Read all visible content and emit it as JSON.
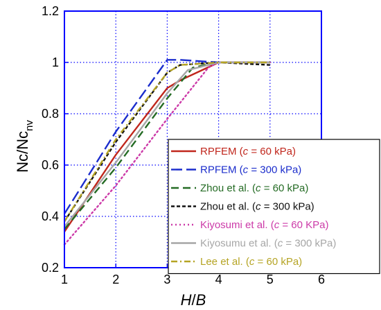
{
  "chart_data": {
    "type": "line",
    "xlabel": {
      "italic": "H",
      "normal": "/",
      "italic2": "B"
    },
    "ylabel": {
      "main": "Nc/Nc",
      "sub": "nv"
    },
    "xlim": [
      1,
      6
    ],
    "ylim": [
      0.2,
      1.2
    ],
    "xticks": [
      1,
      2,
      3,
      4,
      5,
      6
    ],
    "yticks": [
      0.2,
      0.4,
      0.6,
      0.8,
      1.0,
      1.2
    ],
    "xtick_labels": [
      "1",
      "2",
      "3",
      "4",
      "5",
      "6"
    ],
    "ytick_labels": [
      "0.2",
      "0.4",
      "0.6",
      "0.8",
      "1",
      "1.2"
    ],
    "grid": true,
    "legend_position": "bottom-right",
    "series": [
      {
        "name": "RPFEM (c = 60 kPa)",
        "legend": {
          "pre": "RPFEM (",
          "it": "c",
          "post": " = 60 kPa)"
        },
        "color": "#c0261c",
        "dash": "solid",
        "x": [
          1,
          2,
          3,
          3.25,
          4,
          5
        ],
        "y": [
          0.34,
          0.64,
          0.9,
          0.93,
          1.0,
          1.0
        ]
      },
      {
        "name": "RPFEM (c = 300 kPa)",
        "legend": {
          "pre": "RPFEM (",
          "it": "c",
          "post": " = 300 kPa)"
        },
        "color": "#1b2dcc",
        "dash": "longdash",
        "x": [
          1,
          2,
          3,
          3.25,
          4,
          5
        ],
        "y": [
          0.41,
          0.73,
          1.01,
          1.01,
          1.0,
          1.0
        ]
      },
      {
        "name": "Zhou et al. (c = 60 kPa)",
        "legend": {
          "pre": "Zhou et al. (",
          "it": "c",
          "post": " = 60 kPa)"
        },
        "color": "#246b24",
        "dash": "dash",
        "x": [
          1,
          2,
          3,
          3.5,
          4,
          5
        ],
        "y": [
          0.35,
          0.59,
          0.86,
          0.98,
          1.0,
          1.0
        ]
      },
      {
        "name": "Zhou et al. (c = 300 kPa)",
        "legend": {
          "pre": "Zhou et al. (",
          "it": "c",
          "post": " = 300 kPa)"
        },
        "color": "#111111",
        "dash": "shortdash",
        "x": [
          1,
          2,
          3,
          3.25,
          4,
          5
        ],
        "y": [
          0.38,
          0.69,
          0.96,
          0.99,
          1.0,
          0.99
        ]
      },
      {
        "name": "Kiyosumi et al. (c = 60 KPa)",
        "legend": {
          "pre": "Kiyosumi et al. (",
          "it": "c",
          "post": " = 60 KPa)"
        },
        "color": "#cc3aa8",
        "dash": "dot",
        "x": [
          1,
          2,
          3,
          3.8,
          4,
          5
        ],
        "y": [
          0.29,
          0.52,
          0.78,
          0.98,
          1.0,
          1.0
        ]
      },
      {
        "name": "Kiyosumu et al. (c = 300  kPa)",
        "legend": {
          "pre": "Kiyosumu et al. (",
          "it": "c",
          "post": " = 300  kPa)"
        },
        "color": "#a6a6a6",
        "dash": "solid",
        "x": [
          1,
          2,
          3,
          3.4,
          4,
          5
        ],
        "y": [
          0.36,
          0.61,
          0.88,
          0.97,
          1.0,
          1.0
        ]
      },
      {
        "name": "Lee et al. (c = 60 kPa)",
        "legend": {
          "pre": "Lee et al. (",
          "it": "c",
          "post": " = 60 kPa)"
        },
        "color": "#b5a424",
        "dash": "dashdot",
        "x": [
          1,
          2,
          3,
          3.25,
          4,
          5
        ],
        "y": [
          0.38,
          0.7,
          0.96,
          0.99,
          1.0,
          1.0
        ]
      }
    ]
  }
}
